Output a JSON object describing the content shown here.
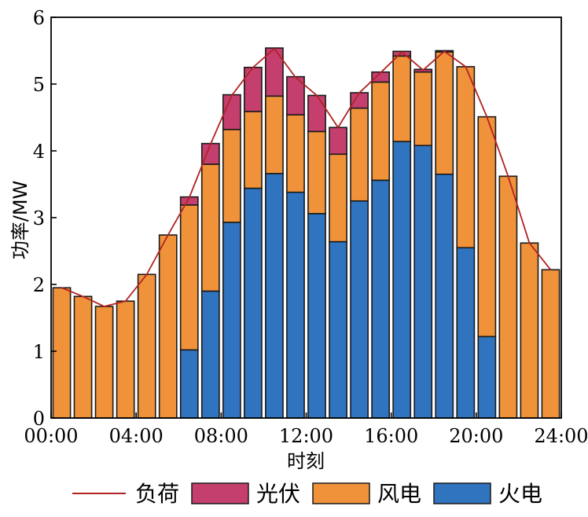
{
  "chart_data": {
    "type": "bar",
    "stacked": true,
    "xlabel": "时刻",
    "ylabel": "功率/MW",
    "ylim": [
      0,
      6
    ],
    "yticks": [
      "0",
      "1",
      "2",
      "3",
      "4",
      "5",
      "6"
    ],
    "xticks": [
      "00:00",
      "04:00",
      "08:00",
      "12:00",
      "16:00",
      "20:00",
      "24:00"
    ],
    "categories": [
      1,
      2,
      3,
      4,
      5,
      6,
      7,
      8,
      9,
      10,
      11,
      12,
      13,
      14,
      15,
      16,
      17,
      18,
      19,
      20,
      21,
      22,
      23,
      24
    ],
    "series": [
      {
        "name": "火电",
        "color": "#3073be",
        "values": [
          0,
          0,
          0,
          0,
          0,
          0,
          1.02,
          1.9,
          2.93,
          3.44,
          3.66,
          3.38,
          3.06,
          2.64,
          3.25,
          3.56,
          4.14,
          4.08,
          3.65,
          2.55,
          1.22,
          0,
          0,
          0
        ]
      },
      {
        "name": "风电",
        "color": "#f0923a",
        "values": [
          1.95,
          1.82,
          1.67,
          1.75,
          2.15,
          2.74,
          2.17,
          1.9,
          1.39,
          1.15,
          1.16,
          1.16,
          1.23,
          1.31,
          1.39,
          1.47,
          1.28,
          1.1,
          1.83,
          2.71,
          3.29,
          3.62,
          2.62,
          2.22
        ]
      },
      {
        "name": "光伏",
        "color": "#c43f6e",
        "values": [
          0,
          0,
          0,
          0,
          0,
          0,
          0.12,
          0.31,
          0.52,
          0.66,
          0.72,
          0.57,
          0.54,
          0.4,
          0.23,
          0.15,
          0.07,
          0.04,
          0.02,
          0,
          0,
          0,
          0,
          0
        ]
      },
      {
        "name": "负荷",
        "type": "line",
        "color": "#b22222",
        "values": [
          1.95,
          1.82,
          1.67,
          1.75,
          2.15,
          2.74,
          3.3,
          4.1,
          4.83,
          5.25,
          5.53,
          5.1,
          4.83,
          4.35,
          4.87,
          5.17,
          5.48,
          5.21,
          5.49,
          5.26,
          4.51,
          3.62,
          2.62,
          2.22
        ]
      }
    ],
    "legend": {
      "placement": "bottom",
      "items": [
        "负荷",
        "光伏",
        "风电",
        "火电"
      ]
    },
    "grid": false
  }
}
